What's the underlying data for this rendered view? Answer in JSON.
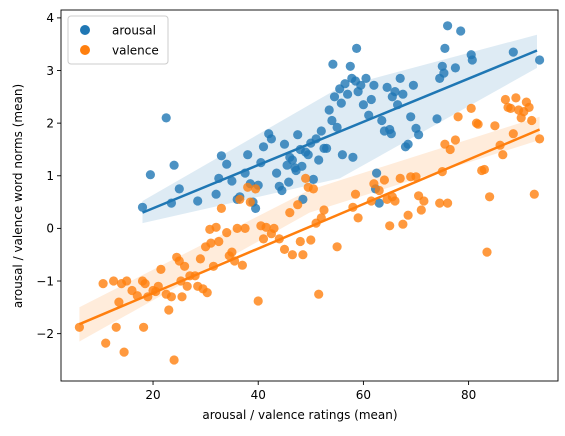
{
  "chart_data": {
    "type": "scatter",
    "title": "",
    "xlabel": "arousal / valence ratings (mean)",
    "ylabel": "arousal / valence word norms (mean)",
    "xlim": [
      2.5,
      97
    ],
    "ylim": [
      -2.9,
      4.15
    ],
    "xticks": [
      20,
      40,
      60,
      80
    ],
    "yticks": [
      -2,
      -1,
      0,
      1,
      2,
      3,
      4
    ],
    "legend_position": "top-left",
    "grid": false,
    "series": [
      {
        "name": "arousal",
        "color": "#1f77b4",
        "fit": {
          "x": [
            18,
            93
          ],
          "y": [
            0.3,
            3.38
          ],
          "ci_lo": [
            0.1,
            3.05
          ],
          "ci_hi": [
            0.52,
            3.68
          ],
          "ci_mid": [
            0.95,
            2.68
          ]
        },
        "points": [
          [
            18,
            0.4
          ],
          [
            19.5,
            1.02
          ],
          [
            22.5,
            2.1
          ],
          [
            23.5,
            0.48
          ],
          [
            24,
            1.2
          ],
          [
            25,
            0.75
          ],
          [
            28.5,
            0.52
          ],
          [
            32,
            0.65
          ],
          [
            32.5,
            0.95
          ],
          [
            33,
            1.38
          ],
          [
            34,
            1.22
          ],
          [
            35,
            0.9
          ],
          [
            36,
            0.55
          ],
          [
            36.5,
            0.6
          ],
          [
            37.5,
            1.05
          ],
          [
            38,
            1.4
          ],
          [
            38.5,
            0.85
          ],
          [
            39,
            0.5
          ],
          [
            39.5,
            0.38
          ],
          [
            40,
            0.82
          ],
          [
            40.5,
            1.25
          ],
          [
            41,
            1.55
          ],
          [
            42,
            1.8
          ],
          [
            42.5,
            1.7
          ],
          [
            43.5,
            1.05
          ],
          [
            44,
            0.8
          ],
          [
            44.5,
            0.72
          ],
          [
            45,
            1.6
          ],
          [
            45.5,
            1.2
          ],
          [
            45.8,
            0.88
          ],
          [
            46,
            1.35
          ],
          [
            46.5,
            1.3
          ],
          [
            47,
            1.15
          ],
          [
            47.2,
            1.1
          ],
          [
            47.5,
            1.78
          ],
          [
            48,
            1.5
          ],
          [
            48.3,
            1.18
          ],
          [
            48.5,
            0.55
          ],
          [
            49,
            1.45
          ],
          [
            49.5,
            1.4
          ],
          [
            50,
            1.62
          ],
          [
            50.5,
            0.93
          ],
          [
            51,
            1.7
          ],
          [
            51.5,
            1.3
          ],
          [
            52,
            1.85
          ],
          [
            52.5,
            1.52
          ],
          [
            53,
            1.52
          ],
          [
            53.5,
            2.25
          ],
          [
            54,
            2.05
          ],
          [
            54.2,
            3.12
          ],
          [
            54.5,
            2.5
          ],
          [
            55,
            1.92
          ],
          [
            55.5,
            2.65
          ],
          [
            55.8,
            2.38
          ],
          [
            56,
            1.4
          ],
          [
            56.5,
            2.75
          ],
          [
            57,
            2.55
          ],
          [
            57.5,
            3.08
          ],
          [
            57.8,
            2.85
          ],
          [
            58,
            1.35
          ],
          [
            58.5,
            2.8
          ],
          [
            58.7,
            3.42
          ],
          [
            59,
            2.6
          ],
          [
            59.5,
            2.72
          ],
          [
            60,
            2.35
          ],
          [
            60.5,
            2.85
          ],
          [
            61,
            2.15
          ],
          [
            61.5,
            2.45
          ],
          [
            62,
            2.72
          ],
          [
            62.3,
            0.75
          ],
          [
            62.5,
            1.05
          ],
          [
            63,
            0.48
          ],
          [
            63.5,
            2.05
          ],
          [
            64,
            1.85
          ],
          [
            64.5,
            2.68
          ],
          [
            65,
            1.88
          ],
          [
            65.3,
            1.8
          ],
          [
            65.5,
            2.5
          ],
          [
            66,
            2.6
          ],
          [
            66.5,
            2.35
          ],
          [
            67,
            2.85
          ],
          [
            67.5,
            2.55
          ],
          [
            68,
            1.55
          ],
          [
            68.5,
            1.6
          ],
          [
            69,
            2.12
          ],
          [
            69.5,
            2.72
          ],
          [
            70,
            1.9
          ],
          [
            70.5,
            1.78
          ],
          [
            74,
            2.08
          ],
          [
            74.5,
            2.85
          ],
          [
            75,
            3.08
          ],
          [
            75.3,
            2.95
          ],
          [
            75.5,
            3.42
          ],
          [
            76,
            3.85
          ],
          [
            77.5,
            3.05
          ],
          [
            78.5,
            3.75
          ],
          [
            80.5,
            3.3
          ],
          [
            80.7,
            3.2
          ],
          [
            88.5,
            3.35
          ],
          [
            93.5,
            3.2
          ]
        ]
      },
      {
        "name": "valence",
        "color": "#ff7f0e",
        "fit": {
          "x": [
            6,
            93.5
          ],
          "y": [
            -1.82,
            1.88
          ],
          "ci_lo": [
            -2.15,
            1.68
          ],
          "ci_hi": [
            -1.5,
            2.12
          ],
          "ci_mid": [
            0.3,
            0.73
          ]
        },
        "points": [
          [
            6,
            -1.88
          ],
          [
            10.5,
            -1.05
          ],
          [
            11,
            -2.18
          ],
          [
            12.5,
            -1.0
          ],
          [
            13,
            -1.88
          ],
          [
            13.5,
            -1.4
          ],
          [
            14,
            -1.05
          ],
          [
            14.5,
            -2.35
          ],
          [
            15,
            -1.0
          ],
          [
            16,
            -1.18
          ],
          [
            17,
            -1.28
          ],
          [
            18,
            -1.0
          ],
          [
            18.2,
            -1.88
          ],
          [
            18.5,
            -1.05
          ],
          [
            19,
            -1.3
          ],
          [
            20,
            -1.18
          ],
          [
            20.5,
            -1.2
          ],
          [
            21,
            -1.1
          ],
          [
            21.5,
            -0.78
          ],
          [
            22.5,
            -1.25
          ],
          [
            23,
            -1.55
          ],
          [
            23.5,
            -1.3
          ],
          [
            24,
            -2.5
          ],
          [
            24.5,
            -0.55
          ],
          [
            25,
            -0.62
          ],
          [
            25.3,
            -1.0
          ],
          [
            25.5,
            -1.3
          ],
          [
            26,
            -0.72
          ],
          [
            26.5,
            -1.1
          ],
          [
            27,
            -0.9
          ],
          [
            28,
            -0.9
          ],
          [
            28.5,
            -1.1
          ],
          [
            29,
            -0.58
          ],
          [
            29.5,
            -1.15
          ],
          [
            30,
            -0.35
          ],
          [
            30.3,
            -1.22
          ],
          [
            30.8,
            -0.02
          ],
          [
            31,
            -0.28
          ],
          [
            31.5,
            -0.72
          ],
          [
            32,
            0.02
          ],
          [
            32.5,
            -0.25
          ],
          [
            33,
            0.38
          ],
          [
            34,
            -0.08
          ],
          [
            34.5,
            -0.52
          ],
          [
            35,
            -0.45
          ],
          [
            35.5,
            -0.62
          ],
          [
            36,
            0.0
          ],
          [
            36.5,
            0.55
          ],
          [
            37,
            -0.7
          ],
          [
            37.5,
            0.0
          ],
          [
            38,
            0.78
          ],
          [
            38.5,
            0.5
          ],
          [
            39.5,
            0.75
          ],
          [
            40,
            -1.38
          ],
          [
            40.5,
            0.05
          ],
          [
            41,
            -0.2
          ],
          [
            41.5,
            0.02
          ],
          [
            42.5,
            -0.1
          ],
          [
            43,
            0.0
          ],
          [
            44,
            -0.2
          ],
          [
            45,
            -0.4
          ],
          [
            46,
            0.3
          ],
          [
            46.5,
            -0.5
          ],
          [
            47.5,
            0.45
          ],
          [
            48,
            -0.25
          ],
          [
            48.5,
            -0.5
          ],
          [
            49,
            0.95
          ],
          [
            49.5,
            0.78
          ],
          [
            50,
            -0.22
          ],
          [
            50.5,
            0.75
          ],
          [
            51,
            0.1
          ],
          [
            51.5,
            -1.25
          ],
          [
            52,
            0.2
          ],
          [
            52.5,
            0.35
          ],
          [
            55,
            -0.35
          ],
          [
            58,
            0.4
          ],
          [
            58.5,
            0.65
          ],
          [
            59,
            0.2
          ],
          [
            61.5,
            0.52
          ],
          [
            62,
            0.85
          ],
          [
            63,
            0.72
          ],
          [
            64,
            0.92
          ],
          [
            64.5,
            0.55
          ],
          [
            65,
            0.05
          ],
          [
            65.5,
            0.6
          ],
          [
            66,
            0.52
          ],
          [
            67,
            0.95
          ],
          [
            67.5,
            0.08
          ],
          [
            68.5,
            0.25
          ],
          [
            69,
            0.98
          ],
          [
            70,
            0.98
          ],
          [
            70.5,
            0.62
          ],
          [
            71,
            0.35
          ],
          [
            71.5,
            0.52
          ],
          [
            74.5,
            0.48
          ],
          [
            75,
            1.08
          ],
          [
            75.5,
            1.6
          ],
          [
            76,
            0.48
          ],
          [
            76.5,
            1.5
          ],
          [
            77.5,
            1.68
          ],
          [
            78,
            2.12
          ],
          [
            80.5,
            2.28
          ],
          [
            81.5,
            2.0
          ],
          [
            81.8,
            1.98
          ],
          [
            82.5,
            1.1
          ],
          [
            83,
            1.12
          ],
          [
            83.5,
            -0.45
          ],
          [
            84,
            0.6
          ],
          [
            85,
            1.95
          ],
          [
            86,
            1.58
          ],
          [
            86.5,
            1.4
          ],
          [
            87,
            2.45
          ],
          [
            87.5,
            2.3
          ],
          [
            88,
            2.28
          ],
          [
            88.5,
            1.8
          ],
          [
            89,
            2.48
          ],
          [
            89.5,
            2.25
          ],
          [
            90,
            2.1
          ],
          [
            90.5,
            2.22
          ],
          [
            91,
            2.4
          ],
          [
            91.5,
            2.3
          ],
          [
            92,
            2.05
          ],
          [
            92.5,
            0.65
          ],
          [
            93.5,
            1.7
          ]
        ]
      }
    ]
  }
}
